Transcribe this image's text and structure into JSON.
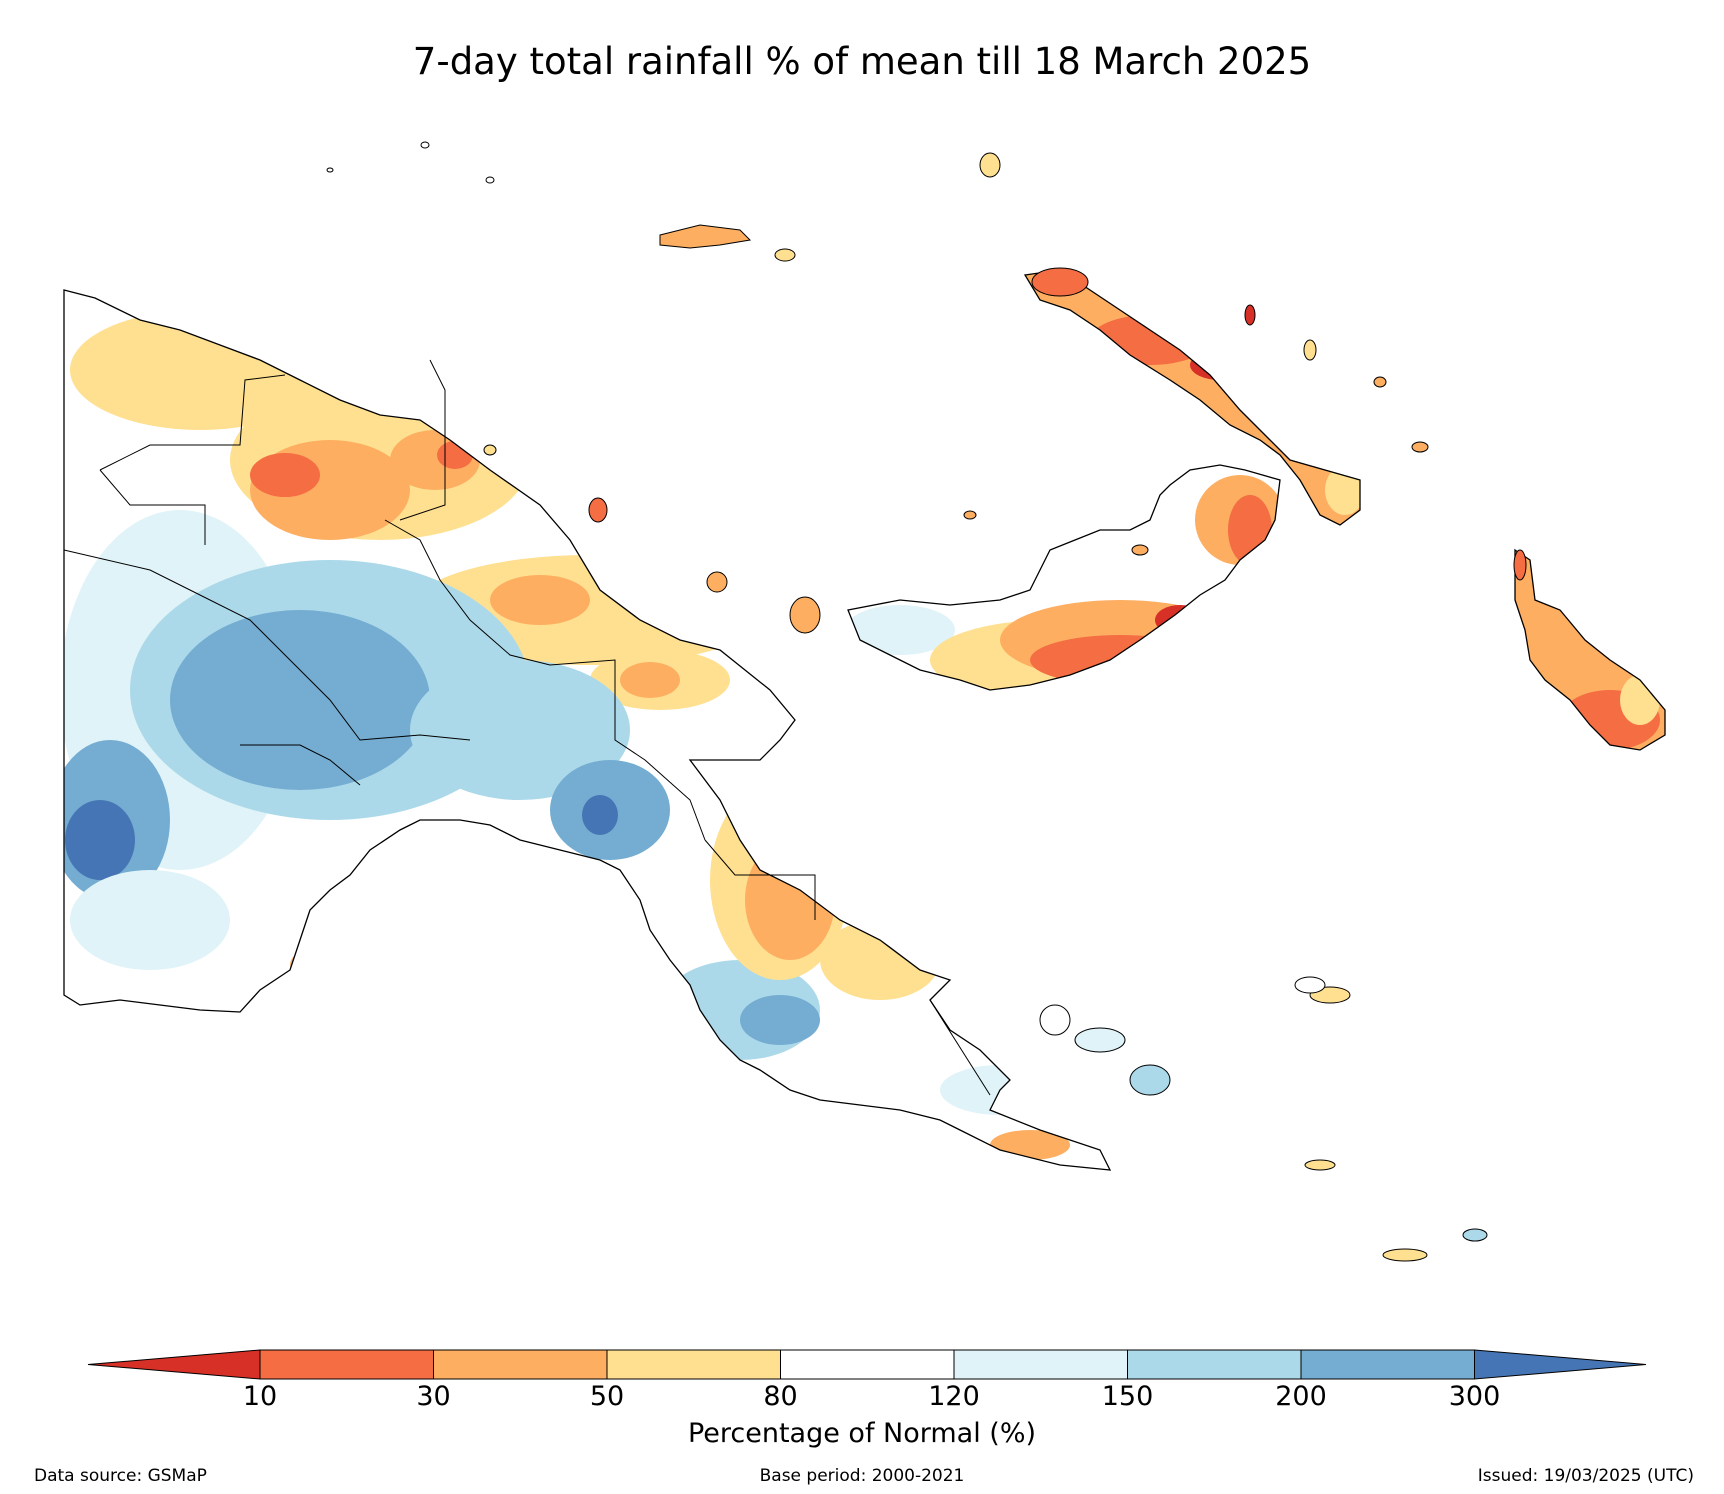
{
  "title": "7-day total rainfall % of mean till 18 March 2025",
  "colorbar": {
    "label": "Percentage of Normal (%)",
    "ticks": [
      "10",
      "30",
      "50",
      "80",
      "120",
      "150",
      "200",
      "300"
    ],
    "colors": {
      "lt10": "#d73027",
      "10-30": "#f46d43",
      "30-50": "#fdae61",
      "50-80": "#fee090",
      "80-120": "#ffffff",
      "120-150": "#e0f3f8",
      "150-200": "#abd9e9",
      "200-300": "#74add1",
      "gt300": "#4575b4"
    }
  },
  "footer": {
    "source": "Data source: GSMaP",
    "base_period": "Base period: 2000-2021",
    "issued": "Issued: 19/03/2025 (UTC)"
  }
}
